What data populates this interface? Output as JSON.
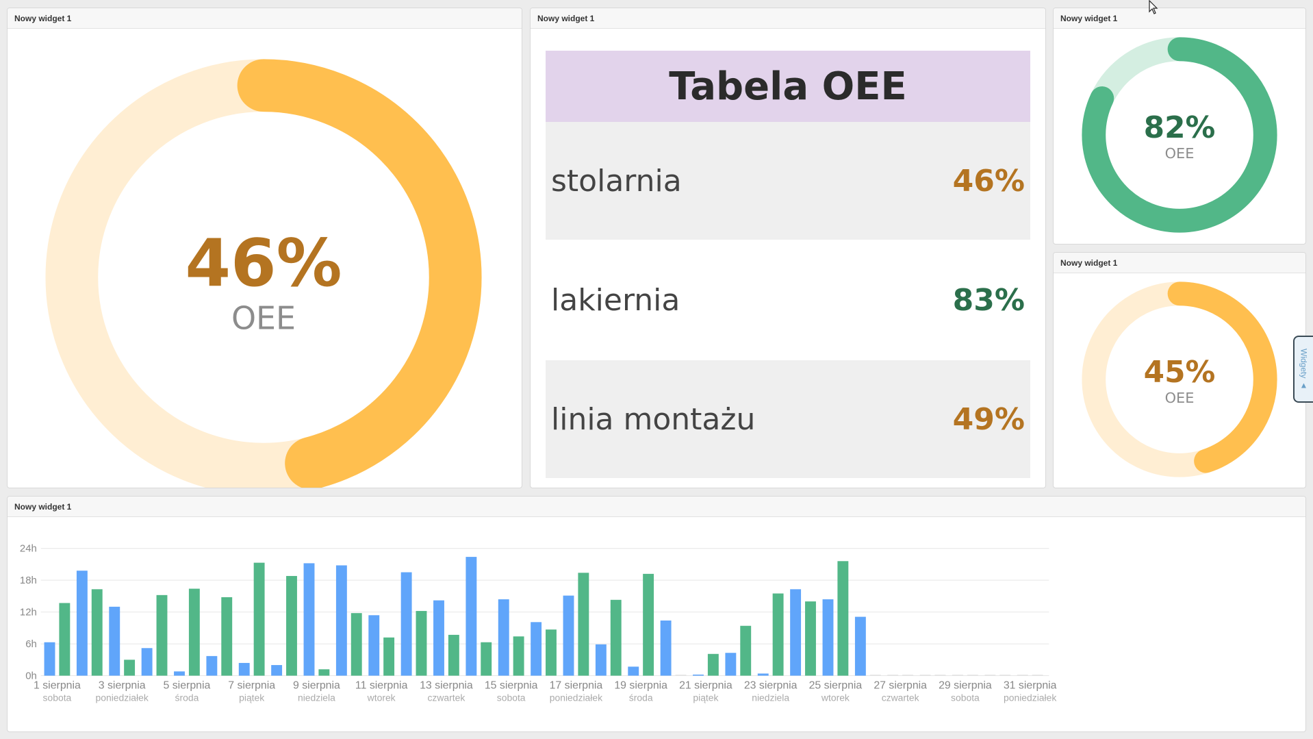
{
  "colors": {
    "amber": "#ffbf4f",
    "amber_track": "#ffeed3",
    "amber_text": "#b47421",
    "green": "#52b788",
    "green_track": "#d4eee1",
    "green_text": "#2b6f4b",
    "blue": "#60a5fa",
    "title_bg": "#e2d3eb"
  },
  "widget1": {
    "header": "Nowy widget 1",
    "value": "46%",
    "label": "OEE",
    "fill": 0.46
  },
  "widget2": {
    "header": "Nowy widget 1",
    "title": "Tabela OEE",
    "rows": [
      {
        "name": "stolarnia",
        "value": "46%"
      },
      {
        "name": "lakiernia",
        "value": "83%"
      },
      {
        "name": "linia montażu",
        "value": "49%"
      }
    ]
  },
  "widget3": {
    "header": "Nowy widget 1",
    "value": "82%",
    "label": "OEE",
    "fill": 0.82
  },
  "widget4": {
    "header": "Nowy widget 1",
    "value": "45%",
    "label": "OEE",
    "fill": 0.45
  },
  "widget5": {
    "header": "Nowy widget 1"
  },
  "widgets_tab": {
    "label": "Widgety ▲"
  },
  "chart_data": {
    "type": "bar",
    "ylim": [
      0,
      24
    ],
    "yticks": [
      "0h",
      "6h",
      "12h",
      "18h",
      "24h"
    ],
    "ytick_values": [
      0,
      6,
      12,
      18,
      24
    ],
    "grid": true,
    "x_labels": [
      {
        "day": 1,
        "date": "1 sierpnia",
        "weekday": "sobota"
      },
      {
        "day": 3,
        "date": "3 sierpnia",
        "weekday": "poniedziałek"
      },
      {
        "day": 5,
        "date": "5 sierpnia",
        "weekday": "środa"
      },
      {
        "day": 7,
        "date": "7 sierpnia",
        "weekday": "piątek"
      },
      {
        "day": 9,
        "date": "9 sierpnia",
        "weekday": "niedziela"
      },
      {
        "day": 11,
        "date": "11 sierpnia",
        "weekday": "wtorek"
      },
      {
        "day": 13,
        "date": "13 sierpnia",
        "weekday": "czwartek"
      },
      {
        "day": 15,
        "date": "15 sierpnia",
        "weekday": "sobota"
      },
      {
        "day": 17,
        "date": "17 sierpnia",
        "weekday": "poniedziałek"
      },
      {
        "day": 19,
        "date": "19 sierpnia",
        "weekday": "środa"
      },
      {
        "day": 21,
        "date": "21 sierpnia",
        "weekday": "piątek"
      },
      {
        "day": 23,
        "date": "23 sierpnia",
        "weekday": "niedziela"
      },
      {
        "day": 25,
        "date": "25 sierpnia",
        "weekday": "wtorek"
      },
      {
        "day": 27,
        "date": "27 sierpnia",
        "weekday": "czwartek"
      },
      {
        "day": 29,
        "date": "29 sierpnia",
        "weekday": "sobota"
      },
      {
        "day": 31,
        "date": "31 sierpnia",
        "weekday": "poniedziałek"
      }
    ],
    "days": [
      1,
      2,
      3,
      4,
      5,
      6,
      7,
      8,
      9,
      10,
      11,
      12,
      13,
      14,
      15,
      16,
      17,
      18,
      19,
      20,
      21,
      22,
      23,
      24,
      25,
      26,
      27,
      28,
      29,
      30,
      31
    ],
    "series": [
      {
        "color": "#60a5fa",
        "values": [
          6.3,
          19.8,
          13,
          5.2,
          0.8,
          3.7,
          2.4,
          2,
          21.2,
          20.8,
          11.4,
          19.5,
          14.2,
          22.4,
          14.4,
          10.1,
          15.1,
          5.9,
          1.7,
          10.4,
          0.2,
          4.3,
          0.4,
          16.3,
          14.4,
          11.1,
          0,
          0,
          0,
          0,
          0
        ]
      },
      {
        "color": "#52b788",
        "values": [
          13.7,
          16.3,
          3,
          15.2,
          16.4,
          14.8,
          21.3,
          18.8,
          1.2,
          11.8,
          7.2,
          12.2,
          7.7,
          6.3,
          7.4,
          8.7,
          19.4,
          14.3,
          19.2,
          0,
          4.1,
          9.4,
          15.5,
          14,
          21.6,
          0,
          0,
          0,
          0,
          0,
          0
        ]
      }
    ]
  }
}
